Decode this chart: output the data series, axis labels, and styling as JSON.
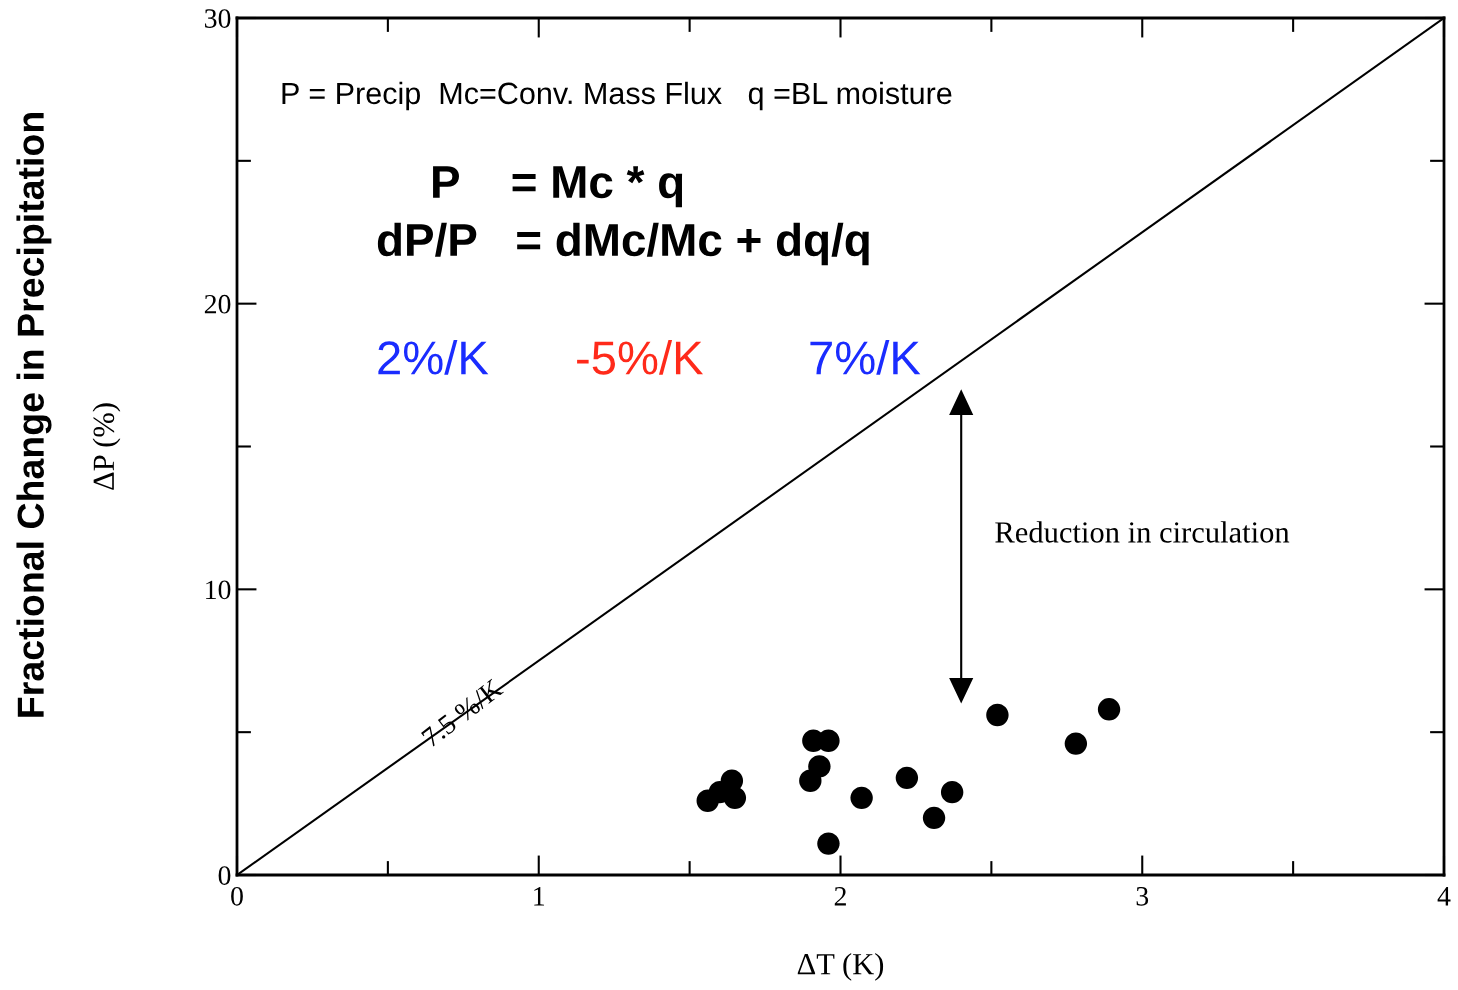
{
  "chart_data": {
    "type": "scatter",
    "xlabel": "ΔT (K)",
    "ylabel": "ΔP (%)",
    "xlim": [
      0,
      4
    ],
    "ylim": [
      0,
      30
    ],
    "xticks": [
      0,
      {
        "value": 0.5,
        "label": null
      },
      1,
      {
        "value": 1.5,
        "label": null
      },
      2,
      {
        "value": 2.5,
        "label": null
      },
      3,
      {
        "value": 3.5,
        "label": null
      },
      4
    ],
    "yticks": [
      0,
      {
        "value": 5,
        "label": null
      },
      10,
      {
        "value": 15,
        "label": null
      },
      20,
      {
        "value": 25,
        "label": null
      },
      30
    ],
    "marker": "circle",
    "series": [
      {
        "type": "line",
        "marker": "none",
        "color": "#000000",
        "x": [
          0,
          4
        ],
        "values": [
          0,
          30
        ]
      },
      {
        "color": "#000000",
        "x": [
          1.56,
          1.6,
          1.64,
          1.65,
          1.91,
          1.96,
          1.93,
          1.9,
          1.96,
          2.07,
          2.22,
          2.37,
          2.31,
          2.52,
          2.78,
          2.89
        ],
        "values": [
          2.6,
          2.9,
          3.3,
          2.7,
          4.7,
          4.7,
          3.8,
          3.3,
          1.1,
          2.7,
          3.4,
          2.9,
          2.0,
          5.6,
          4.6,
          5.8
        ]
      }
    ],
    "annotations": [
      "Fractional Change in Precipitation",
      "P = Precip  Mc=Conv. Mass Flux   q =BL moisture",
      "P    = Mc * q",
      "dP/P   = dMc/Mc + dq/q",
      "2%/K",
      "-5%/K",
      "7%/K",
      {
        "text": "7.5 %/K",
        "x": 0.75,
        "y": 5.6
      },
      "Reduction in circulation"
    ]
  }
}
